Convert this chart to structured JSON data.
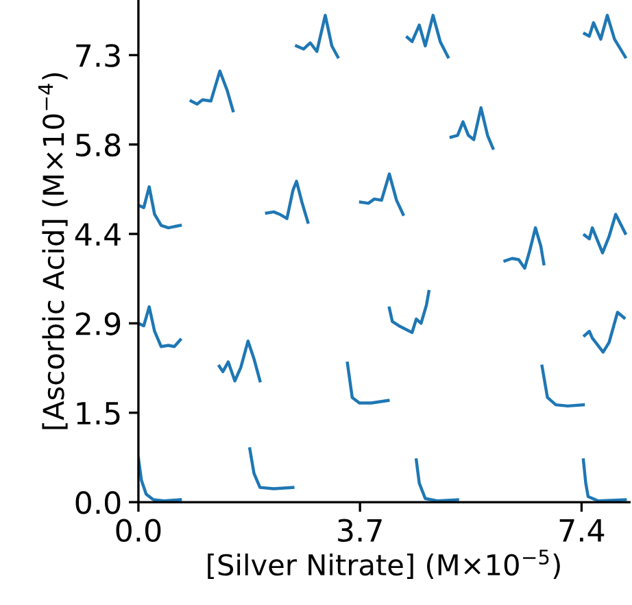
{
  "chart_data": {
    "type": "line",
    "xlabel": "[Silver Nitrate] (M×10$^{−5}$)",
    "ylabel": "[Ascorbic Acid] (M×10$^{−4}$)",
    "xlim": [
      0,
      8.2
    ],
    "ylim": [
      0,
      8.2
    ],
    "xticks": [
      {
        "value": 0,
        "label": "0.0"
      },
      3.7,
      7.4
    ],
    "yticks": [
      {
        "value": 0,
        "label": "0.0"
      },
      {
        "value": 1.46,
        "label": "1.5"
      },
      {
        "value": 2.92,
        "label": "2.9"
      },
      {
        "value": 4.38,
        "label": "4.4"
      },
      {
        "value": 5.84,
        "label": "5.8"
      },
      {
        "value": 7.3,
        "label": "7.3"
      }
    ],
    "grid": false,
    "marker": "none",
    "line_style": "solid",
    "series": [
      {
        "color": "#1f77b4",
        "x": [
          0,
          0.05,
          0.13,
          0.25,
          0.43,
          0.7
        ],
        "values": [
          0.72,
          0.36,
          0.13,
          0.04,
          0.02,
          0.04
        ]
      },
      {
        "color": "#1f77b4",
        "x": [
          1.86,
          1.93,
          2.03,
          2.26,
          2.58
        ],
        "values": [
          0.87,
          0.47,
          0.24,
          0.22,
          0.24
        ]
      },
      {
        "color": "#1f77b4",
        "x": [
          4.64,
          4.69,
          4.79,
          4.99,
          5.33
        ],
        "values": [
          0.69,
          0.31,
          0.06,
          0.02,
          0.04
        ]
      },
      {
        "color": "#1f77b4",
        "x": [
          7.43,
          7.47,
          7.51,
          7.68,
          8.13
        ],
        "values": [
          0.69,
          0.31,
          0.09,
          0.02,
          0.04
        ]
      },
      {
        "color": "#1f77b4",
        "x": [
          3.49,
          3.57,
          3.69,
          3.89,
          4.17
        ],
        "values": [
          2.27,
          1.71,
          1.62,
          1.62,
          1.66
        ]
      },
      {
        "color": "#1f77b4",
        "x": [
          6.74,
          6.83,
          6.97,
          7.17,
          7.43
        ],
        "values": [
          2.22,
          1.71,
          1.59,
          1.57,
          1.59
        ]
      },
      {
        "color": "#1f77b4",
        "x": [
          1.35,
          1.41,
          1.5,
          1.61,
          1.71,
          1.83,
          1.93,
          2.03
        ],
        "values": [
          2.22,
          2.13,
          2.29,
          1.98,
          2.2,
          2.63,
          2.34,
          1.98
        ]
      },
      {
        "color": "#1f77b4",
        "x": [
          0,
          0.09,
          0.18,
          0.27,
          0.38,
          0.5,
          0.6,
          0.7
        ],
        "values": [
          2.92,
          2.88,
          3.19,
          2.79,
          2.54,
          2.56,
          2.54,
          2.65
        ]
      },
      {
        "color": "#1f77b4",
        "x": [
          4.19,
          4.24,
          4.35,
          4.57,
          4.64,
          4.72,
          4.81,
          4.85
        ],
        "values": [
          3.17,
          2.95,
          2.88,
          2.77,
          2.99,
          2.92,
          3.22,
          3.44
        ]
      },
      {
        "color": "#1f77b4",
        "x": [
          7.45,
          7.53,
          7.58,
          7.76,
          7.86,
          8.0,
          8.11
        ],
        "values": [
          2.72,
          2.79,
          2.68,
          2.45,
          2.61,
          3.1,
          3.01
        ]
      },
      {
        "color": "#1f77b4",
        "x": [
          6.12,
          6.24,
          6.35,
          6.45,
          6.53,
          6.63,
          6.72,
          6.77
        ],
        "values": [
          3.94,
          3.98,
          3.96,
          3.82,
          4.09,
          4.48,
          4.18,
          3.89
        ]
      },
      {
        "color": "#1f77b4",
        "x": [
          7.45,
          7.53,
          7.58,
          7.75,
          7.86,
          7.97,
          8.13
        ],
        "values": [
          4.36,
          4.3,
          4.48,
          4.07,
          4.34,
          4.7,
          4.39
        ]
      },
      {
        "color": "#1f77b4",
        "x": [
          5.22,
          5.33,
          5.42,
          5.51,
          5.6,
          5.72,
          5.83,
          5.92
        ],
        "values": [
          5.96,
          5.99,
          6.21,
          5.99,
          5.92,
          6.44,
          5.99,
          5.78
        ]
      },
      {
        "color": "#1f77b4",
        "x": [
          7.45,
          7.53,
          7.6,
          7.72,
          7.83,
          7.95,
          8.13
        ],
        "values": [
          7.65,
          7.61,
          7.83,
          7.56,
          7.95,
          7.56,
          7.27
        ]
      },
      {
        "color": "#1f77b4",
        "x": [
          2.64,
          2.76,
          2.87,
          2.98,
          3.12,
          3.23,
          3.33
        ],
        "values": [
          7.45,
          7.4,
          7.5,
          7.36,
          7.95,
          7.45,
          7.27
        ]
      },
      {
        "color": "#1f77b4",
        "x": [
          4.49,
          4.57,
          4.69,
          4.79,
          4.92,
          5.04,
          5.17
        ],
        "values": [
          7.59,
          7.52,
          7.79,
          7.45,
          7.95,
          7.52,
          7.27
        ]
      },
      {
        "color": "#1f77b4",
        "x": [
          0.88,
          0.98,
          1.07,
          1.21,
          1.36,
          1.48,
          1.58
        ],
        "values": [
          6.55,
          6.5,
          6.57,
          6.55,
          7.04,
          6.73,
          6.39
        ]
      },
      {
        "color": "#1f77b4",
        "x": [
          0.02,
          0.09,
          0.18,
          0.27,
          0.38,
          0.5,
          0.7
        ],
        "values": [
          4.84,
          4.81,
          5.15,
          4.7,
          4.52,
          4.48,
          4.52
        ]
      },
      {
        "color": "#1f77b4",
        "x": [
          2.14,
          2.26,
          2.36,
          2.48,
          2.58,
          2.64,
          2.73,
          2.83
        ],
        "values": [
          4.72,
          4.74,
          4.7,
          4.63,
          5.09,
          5.24,
          4.9,
          4.57
        ]
      },
      {
        "color": "#1f77b4",
        "x": [
          3.71,
          3.84,
          3.94,
          4.06,
          4.19,
          4.31,
          4.42
        ],
        "values": [
          4.9,
          4.88,
          4.95,
          4.93,
          5.36,
          4.93,
          4.7
        ]
      }
    ]
  }
}
